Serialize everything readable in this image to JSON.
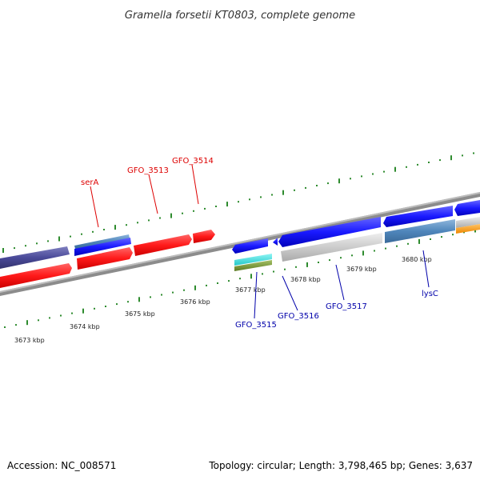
{
  "title": "Gramella forsetii KT0803, complete genome",
  "footer": {
    "accession": "Accession: NC_008571",
    "summary": "Topology: circular; Length: 3,798,465 bp; Genes: 3,637"
  },
  "colors": {
    "forward_labels": "#dd0000",
    "reverse_labels": "#0000aa",
    "ticks": "#2e8b2e",
    "backbone": "#888888"
  },
  "ticks": [
    "3673 kbp",
    "3674 kbp",
    "3675 kbp",
    "3676 kbp",
    "3677 kbp",
    "3678 kbp",
    "3679 kbp",
    "3680 kbp"
  ],
  "forward_gene_labels": [
    "serA",
    "GFO_3513",
    "GFO_3514"
  ],
  "reverse_gene_labels": [
    "GFO_3515",
    "GFO_3516",
    "GFO_3517",
    "lysC"
  ],
  "legend_note": ""
}
